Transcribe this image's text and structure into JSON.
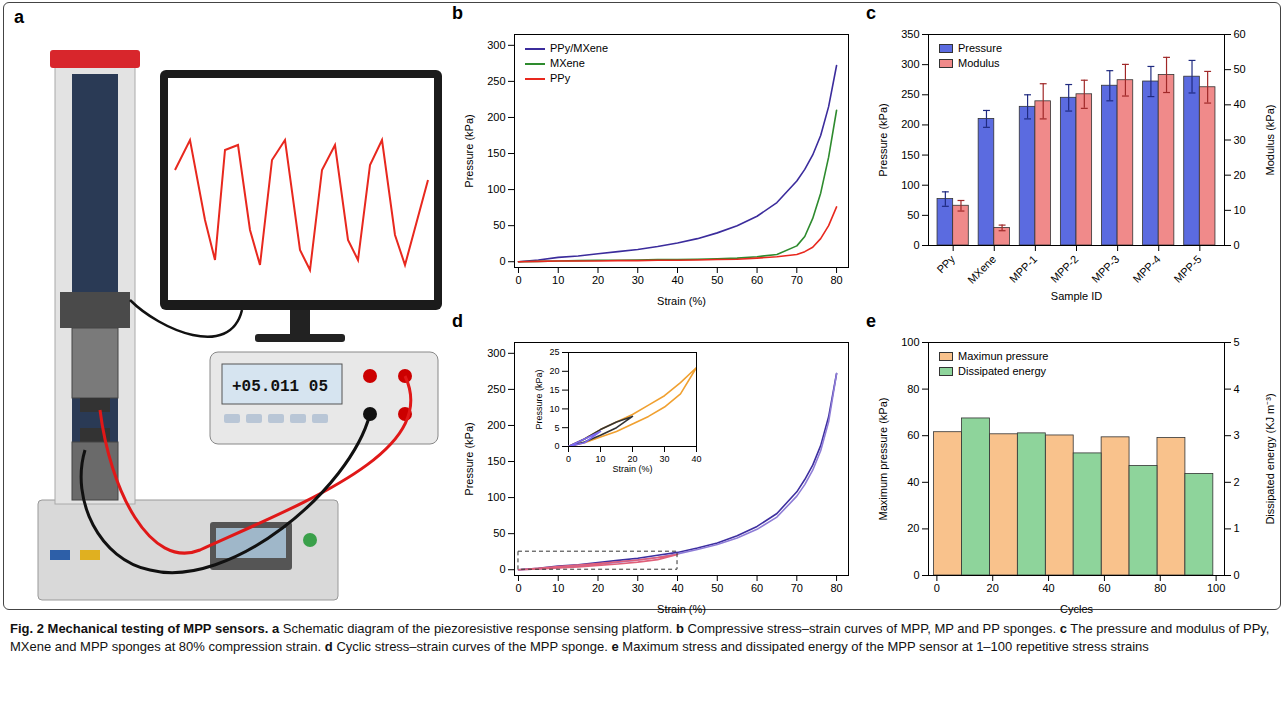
{
  "panel_a": {
    "label": "a",
    "display": "+05.011 05"
  },
  "chart_data": [
    {
      "label": "b",
      "type": "line",
      "xlabel": "Strain (%)",
      "ylabel": "Pressure (kPa)",
      "xlim": [
        -1,
        83
      ],
      "ylim": [
        -8,
        315
      ],
      "xticks": [
        0,
        10,
        20,
        30,
        40,
        50,
        60,
        70,
        80
      ],
      "yticks": [
        0,
        50,
        100,
        150,
        200,
        250,
        300
      ],
      "legend": "top-left",
      "x": [
        0,
        5,
        10,
        15,
        20,
        25,
        30,
        35,
        40,
        45,
        50,
        55,
        60,
        65,
        70,
        72,
        74,
        76,
        78,
        80
      ],
      "series": [
        {
          "name": "PPy/MXene",
          "color": "#3b2c9c",
          "values": [
            0,
            2.5,
            6,
            8,
            11,
            14,
            17,
            21,
            26,
            32,
            40,
            50,
            63,
            82,
            112,
            128,
            148,
            175,
            215,
            272
          ]
        },
        {
          "name": "MXene",
          "color": "#2e8b2e",
          "values": [
            0,
            0.5,
            1,
            1.5,
            2,
            2,
            2.5,
            3,
            3,
            3.5,
            4,
            5,
            7,
            10,
            22,
            35,
            60,
            95,
            145,
            210
          ]
        },
        {
          "name": "PPy",
          "color": "#e8281e",
          "values": [
            0,
            0.5,
            1,
            1,
            1,
            1.5,
            1.5,
            2,
            2,
            2.5,
            3,
            3.5,
            5,
            7,
            10,
            14,
            20,
            32,
            50,
            76
          ]
        }
      ]
    },
    {
      "label": "c",
      "type": "bar",
      "xlabel": "Sample ID",
      "ylabel": "Pressure (kPa)",
      "y2label": "Modulus (kPa)",
      "ylim": [
        0,
        350
      ],
      "yticks": [
        0,
        50,
        100,
        150,
        200,
        250,
        300,
        350
      ],
      "y2lim": [
        0,
        60
      ],
      "y2ticks": [
        0,
        10,
        20,
        30,
        40,
        50,
        60
      ],
      "legend": "top-left",
      "categories": [
        "PPy",
        "MXene",
        "MPP-1",
        "MPP-2",
        "MPP-3",
        "MPP-4",
        "MPP-5"
      ],
      "series": [
        {
          "name": "Pressure",
          "color": "#5b6be0",
          "values": [
            77,
            210,
            230,
            245,
            265,
            272,
            280
          ],
          "errors": [
            12,
            14,
            20,
            22,
            25,
            25,
            27
          ]
        },
        {
          "name": "Modulus",
          "color": "#f08a8a",
          "axis": "y2",
          "values": [
            11.3,
            5,
            41,
            43,
            47,
            48.5,
            45
          ],
          "errors": [
            1.5,
            0.8,
            5,
            4,
            4.5,
            5,
            4.5
          ]
        }
      ]
    },
    {
      "label": "d",
      "type": "line",
      "xlabel": "Strain (%)",
      "ylabel": "Pressure (kPa)",
      "xlim": [
        -1,
        83
      ],
      "ylim": [
        -8,
        315
      ],
      "xticks": [
        0,
        10,
        20,
        30,
        40,
        50,
        60,
        70,
        80
      ],
      "yticks": [
        0,
        50,
        100,
        150,
        200,
        250,
        300
      ],
      "series": [
        {
          "color": "#3d2f9f",
          "x": [
            0,
            5,
            10,
            15,
            20,
            25,
            30,
            35,
            40,
            45,
            50,
            55,
            60,
            65,
            70,
            72,
            74,
            76,
            78,
            80
          ],
          "values": [
            0,
            2,
            5,
            7,
            10,
            13,
            16,
            20,
            24,
            30,
            37,
            47,
            60,
            78,
            108,
            125,
            145,
            172,
            212,
            272
          ]
        },
        {
          "color": "#8e7cd6",
          "x": [
            80,
            78,
            76,
            74,
            72,
            70,
            65,
            60,
            55,
            50,
            45,
            40,
            35,
            30,
            25,
            20,
            15,
            10,
            5,
            0
          ],
          "values": [
            272,
            205,
            165,
            138,
            118,
            102,
            73,
            56,
            44,
            35,
            28,
            22,
            17,
            13.5,
            10.5,
            7.5,
            5,
            3,
            1,
            0
          ]
        },
        {
          "color": "#e0607a",
          "x": [
            0,
            5,
            10,
            15,
            20,
            25,
            30,
            35,
            40,
            35,
            30,
            25,
            20,
            15,
            10,
            5,
            0
          ],
          "values": [
            0,
            2,
            4.5,
            6.5,
            8.5,
            11,
            13.5,
            17,
            21,
            14,
            10.5,
            8,
            6,
            4,
            2.5,
            1,
            0
          ]
        }
      ],
      "inset": {
        "type": "line",
        "xlabel": "Strain (%)",
        "ylabel": "Pressure (kPa)",
        "xlim": [
          0,
          40
        ],
        "ylim": [
          0,
          25
        ],
        "xticks": [
          0,
          10,
          20,
          30,
          40
        ],
        "yticks": [
          0,
          5,
          10,
          15,
          20,
          25
        ],
        "series": [
          {
            "color": "#f0a030",
            "x": [
              0,
              5,
              10,
              15,
              20,
              25,
              30,
              35,
              40,
              35,
              30,
              25,
              20,
              15,
              10,
              5,
              0
            ],
            "values": [
              0,
              2,
              4.5,
              6.5,
              8.5,
              11,
              13.5,
              17,
              21,
              14,
              10.5,
              8,
              6,
              4,
              2.5,
              1,
              0
            ]
          },
          {
            "color": "#333333",
            "x": [
              0,
              5,
              10,
              15,
              20,
              15,
              10,
              5,
              0
            ],
            "values": [
              0,
              2,
              4.5,
              6.5,
              8,
              5,
              3,
              1.2,
              0
            ]
          },
          {
            "color": "#7b68ee",
            "x": [
              0,
              5,
              10,
              5,
              0
            ],
            "values": [
              0,
              2,
              4,
              1,
              0
            ]
          }
        ]
      }
    },
    {
      "label": "e",
      "type": "bar",
      "xlabel": "Cycles",
      "ylabel": "Maximum pressure (kPa)",
      "y2label": "Dissipated energy (KJ m⁻³)",
      "xlim": [
        -3,
        103
      ],
      "xticks": [
        0,
        20,
        40,
        60,
        80,
        100
      ],
      "ylim": [
        0,
        100
      ],
      "yticks": [
        0,
        20,
        40,
        60,
        80,
        100
      ],
      "y2lim": [
        0,
        5
      ],
      "y2ticks": [
        0,
        1,
        2,
        3,
        4,
        5
      ],
      "legend": "top-left",
      "x": [
        9,
        29,
        49,
        69,
        89
      ],
      "series": [
        {
          "name": "Maximun pressure",
          "color": "#f9c28c",
          "values": [
            61.5,
            60.6,
            60.1,
            59.3,
            59
          ]
        },
        {
          "name": "Dissipated energy",
          "color": "#8ed49b",
          "axis": "y2",
          "values": [
            3.37,
            3.05,
            2.62,
            2.35,
            2.18
          ]
        }
      ]
    }
  ],
  "caption": {
    "title": "Fig. 2 Mechanical testing of MPP sensors.",
    "parts": [
      {
        "label": "a",
        "text": "Schematic diagram of the piezoresistive response sensing platform."
      },
      {
        "label": "b",
        "text": "Compressive stress–strain curves of MPP, MP and PP sponges."
      },
      {
        "label": "c",
        "text": "The pressure and modulus of PPy, MXene and MPP sponges at 80% compression strain."
      },
      {
        "label": "d",
        "text": "Cyclic stress–strain curves of the MPP sponge."
      },
      {
        "label": "e",
        "text": "Maximum stress and dissipated energy of the MPP sensor at 1–100 repetitive stress strains"
      }
    ]
  }
}
